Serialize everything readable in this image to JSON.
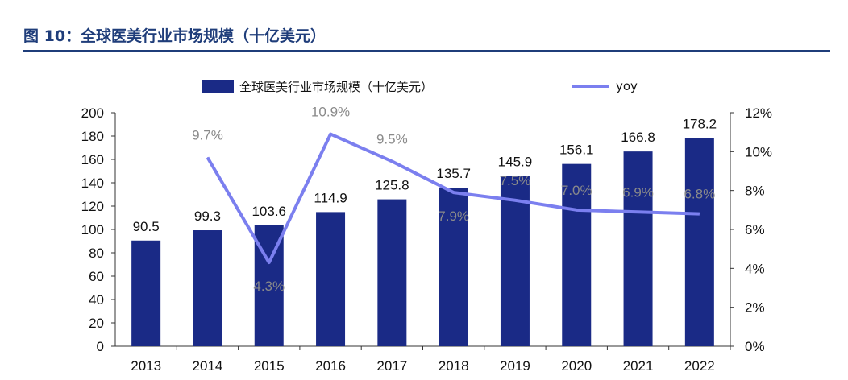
{
  "figure": {
    "title": "图 10：全球医美行业市场规模（十亿美元）"
  },
  "colors": {
    "title": "#1f3d7a",
    "bar": "#1a2a86",
    "line": "#7b7fef",
    "yoy_label": "#8a8a8a",
    "text": "#111111"
  },
  "chart_data": {
    "type": "bar+line",
    "categories": [
      "2013",
      "2014",
      "2015",
      "2016",
      "2017",
      "2018",
      "2019",
      "2020",
      "2021",
      "2022"
    ],
    "series": [
      {
        "name": "全球医美行业市场规模（十亿美元）",
        "type": "bar",
        "axis": "left",
        "values": [
          90.5,
          99.3,
          103.6,
          114.9,
          125.8,
          135.7,
          145.9,
          156.1,
          166.8,
          178.2
        ],
        "labels": [
          "90.5",
          "99.3",
          "103.6",
          "114.9",
          "125.8",
          "135.7",
          "145.9",
          "156.1",
          "166.8",
          "178.2"
        ]
      },
      {
        "name": "yoy",
        "type": "line",
        "axis": "right",
        "values": [
          null,
          9.7,
          4.3,
          10.9,
          9.5,
          7.9,
          7.5,
          7.0,
          6.9,
          6.8
        ],
        "labels": [
          "",
          "9.7%",
          "4.3%",
          "10.9%",
          "9.5%",
          "7.9%",
          "7.5%",
          "7.0%",
          "6.9%",
          "6.8%"
        ]
      }
    ],
    "y_left": {
      "min": 0,
      "max": 200,
      "step": 20,
      "ticks": [
        "0",
        "20",
        "40",
        "60",
        "80",
        "100",
        "120",
        "140",
        "160",
        "180",
        "200"
      ]
    },
    "y_right": {
      "min": 0,
      "max": 12,
      "step": 2,
      "ticks": [
        "0%",
        "2%",
        "4%",
        "6%",
        "8%",
        "10%",
        "12%"
      ]
    },
    "legend": {
      "position": "top",
      "bar_label": "全球医美行业市场规模（十亿美元）",
      "line_label": "yoy"
    },
    "grid": false
  }
}
